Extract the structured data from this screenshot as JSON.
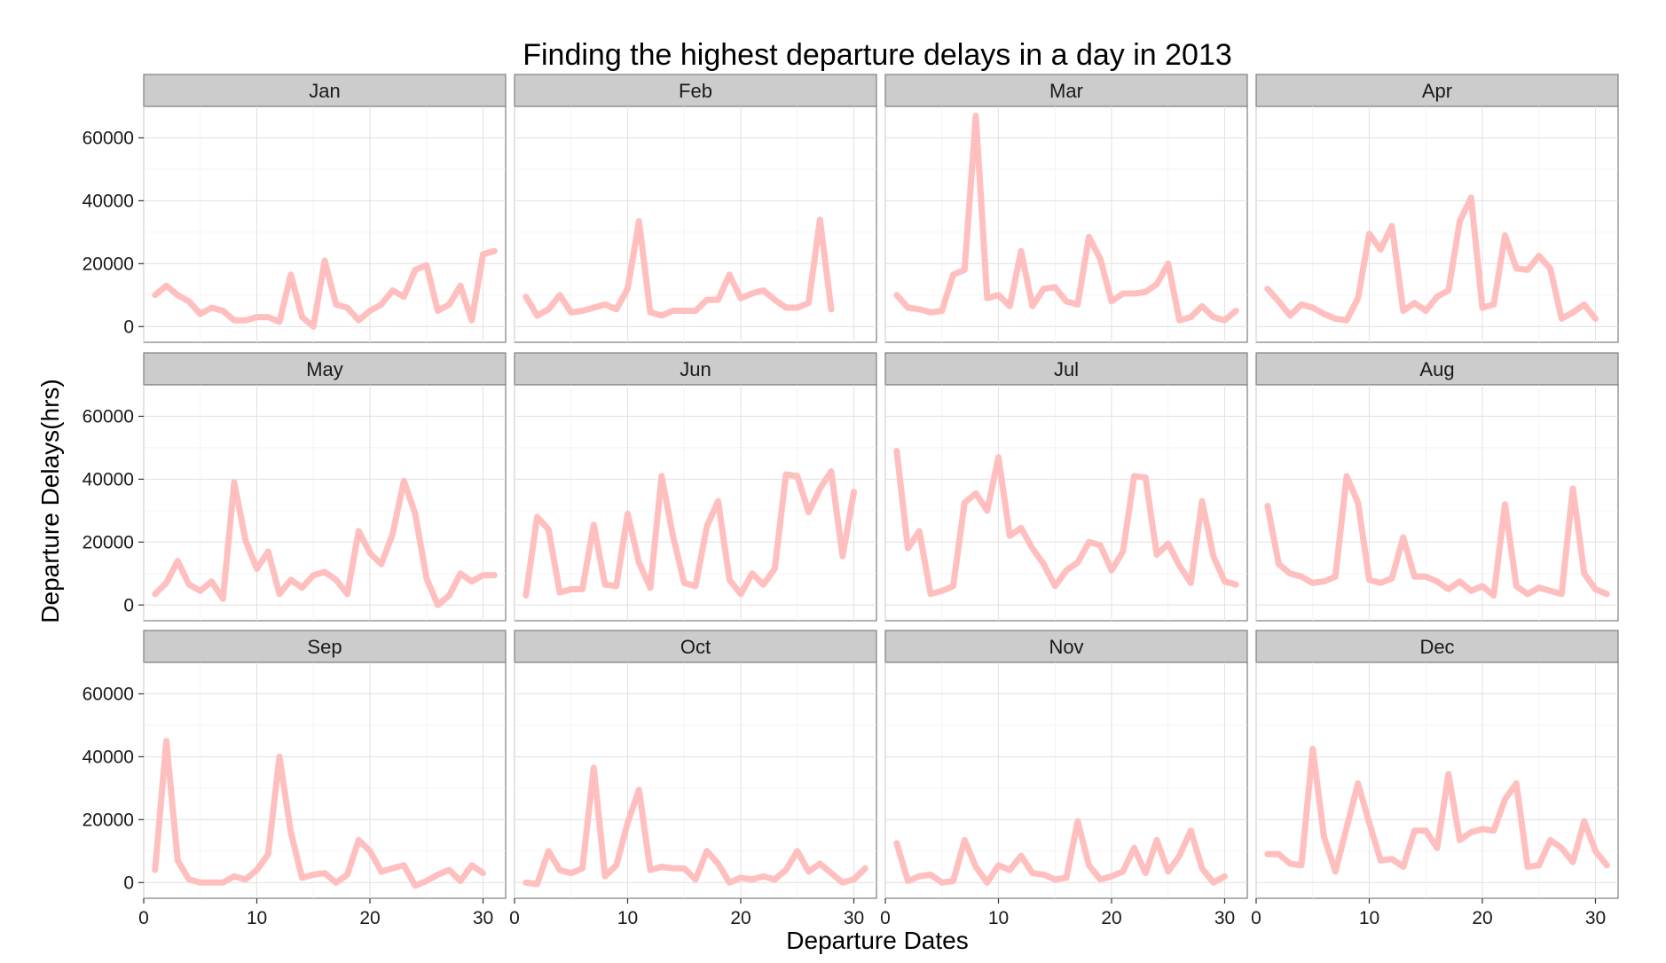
{
  "chart_data": {
    "type": "line",
    "title": "Finding the highest departure delays in a day in 2013",
    "xlabel": "Departure Dates",
    "ylabel": "Departure Delays(hrs)",
    "xlim": [
      0,
      32
    ],
    "ylim": [
      -5000,
      70000
    ],
    "x_ticks": [
      0,
      10,
      20,
      30
    ],
    "y_ticks": [
      0,
      20000,
      40000,
      60000
    ],
    "grid": true,
    "line_color": "#ffbfbf",
    "facet_layout": {
      "cols": 4,
      "rows": 3
    },
    "facets": [
      {
        "name": "Jan",
        "x": [
          1,
          2,
          3,
          4,
          5,
          6,
          7,
          8,
          9,
          10,
          11,
          12,
          13,
          14,
          15,
          16,
          17,
          18,
          19,
          20,
          21,
          22,
          23,
          24,
          25,
          26,
          27,
          28,
          29,
          30,
          31
        ],
        "values": [
          10000,
          13000,
          10000,
          8000,
          4000,
          6000,
          5000,
          2000,
          2000,
          3000,
          3000,
          1500,
          16500,
          3000,
          0,
          21000,
          7000,
          6000,
          2000,
          5000,
          7000,
          11500,
          9500,
          18000,
          19500,
          5000,
          7000,
          13000,
          2000,
          23000,
          24000
        ]
      },
      {
        "name": "Feb",
        "x": [
          1,
          2,
          3,
          4,
          5,
          6,
          7,
          8,
          9,
          10,
          11,
          12,
          13,
          14,
          15,
          16,
          17,
          18,
          19,
          20,
          21,
          22,
          23,
          24,
          25,
          26,
          27,
          28
        ],
        "values": [
          9500,
          3500,
          5500,
          10000,
          4500,
          5000,
          6000,
          7000,
          5500,
          12000,
          33500,
          4500,
          3500,
          5000,
          5000,
          5000,
          8500,
          8500,
          16500,
          9000,
          10500,
          11500,
          8500,
          6000,
          6000,
          7500,
          34000,
          5500
        ]
      },
      {
        "name": "Mar",
        "x": [
          1,
          2,
          3,
          4,
          5,
          6,
          7,
          8,
          9,
          10,
          11,
          12,
          13,
          14,
          15,
          16,
          17,
          18,
          19,
          20,
          21,
          22,
          23,
          24,
          25,
          26,
          27,
          28,
          29,
          30,
          31
        ],
        "values": [
          10000,
          6000,
          5500,
          4500,
          5000,
          16500,
          18000,
          67000,
          9000,
          10000,
          6500,
          24000,
          6500,
          12000,
          12500,
          8000,
          7000,
          28500,
          21500,
          8000,
          10500,
          10500,
          11000,
          13500,
          20000,
          2000,
          3000,
          6500,
          3000,
          2000,
          5000
        ]
      },
      {
        "name": "Apr",
        "x": [
          1,
          2,
          3,
          4,
          5,
          6,
          7,
          8,
          9,
          10,
          11,
          12,
          13,
          14,
          15,
          16,
          17,
          18,
          19,
          20,
          21,
          22,
          23,
          24,
          25,
          26,
          27,
          28,
          29,
          30
        ],
        "values": [
          12000,
          8000,
          3500,
          7000,
          6000,
          4000,
          2500,
          2000,
          9000,
          29500,
          24500,
          32000,
          5000,
          7500,
          5000,
          9500,
          11500,
          33500,
          41000,
          6000,
          7000,
          29000,
          18500,
          18000,
          22500,
          18500,
          2500,
          4500,
          7000,
          2500
        ]
      },
      {
        "name": "May",
        "x": [
          1,
          2,
          3,
          4,
          5,
          6,
          7,
          8,
          9,
          10,
          11,
          12,
          13,
          14,
          15,
          16,
          17,
          18,
          19,
          20,
          21,
          22,
          23,
          24,
          25,
          26,
          27,
          28,
          29,
          30,
          31
        ],
        "values": [
          3500,
          7000,
          14000,
          6500,
          4500,
          7500,
          2000,
          39000,
          20500,
          11500,
          17000,
          3500,
          8000,
          5500,
          9500,
          10500,
          8000,
          3500,
          23500,
          16500,
          13000,
          22500,
          39500,
          29000,
          8500,
          0,
          3000,
          10000,
          7500,
          9500,
          9500
        ]
      },
      {
        "name": "Jun",
        "x": [
          1,
          2,
          3,
          4,
          5,
          6,
          7,
          8,
          9,
          10,
          11,
          12,
          13,
          14,
          15,
          16,
          17,
          18,
          19,
          20,
          21,
          22,
          23,
          24,
          25,
          26,
          27,
          28,
          29,
          30
        ],
        "values": [
          3000,
          28000,
          24000,
          4000,
          5000,
          5000,
          25500,
          6500,
          6000,
          29000,
          13500,
          5500,
          41000,
          22000,
          7000,
          6000,
          25000,
          33000,
          8000,
          3500,
          10000,
          6500,
          11500,
          41500,
          41000,
          29500,
          37000,
          42500,
          15500,
          36000
        ]
      },
      {
        "name": "Jul",
        "x": [
          1,
          2,
          3,
          4,
          5,
          6,
          7,
          8,
          9,
          10,
          11,
          12,
          13,
          14,
          15,
          16,
          17,
          18,
          19,
          20,
          21,
          22,
          23,
          24,
          25,
          26,
          27,
          28,
          29,
          30,
          31
        ],
        "values": [
          49000,
          18000,
          23500,
          3500,
          4500,
          6000,
          32500,
          35500,
          30000,
          47000,
          22000,
          24500,
          18000,
          13000,
          6000,
          11000,
          13500,
          20000,
          19000,
          11000,
          17000,
          41000,
          40500,
          16000,
          19500,
          12500,
          7000,
          33000,
          15500,
          7500,
          6500
        ]
      },
      {
        "name": "Aug",
        "x": [
          1,
          2,
          3,
          4,
          5,
          6,
          7,
          8,
          9,
          10,
          11,
          12,
          13,
          14,
          15,
          16,
          17,
          18,
          19,
          20,
          21,
          22,
          23,
          24,
          25,
          26,
          27,
          28,
          29,
          30,
          31
        ],
        "values": [
          31500,
          13000,
          10000,
          9000,
          7000,
          7500,
          9000,
          41000,
          32500,
          8000,
          7000,
          8500,
          21500,
          9000,
          9000,
          7500,
          5000,
          7500,
          4500,
          6000,
          3000,
          32000,
          6000,
          3500,
          5500,
          4500,
          3500,
          37000,
          10000,
          5000,
          3500
        ]
      },
      {
        "name": "Sep",
        "x": [
          1,
          2,
          3,
          4,
          5,
          6,
          7,
          8,
          9,
          10,
          11,
          12,
          13,
          14,
          15,
          16,
          17,
          18,
          19,
          20,
          21,
          22,
          23,
          24,
          25,
          26,
          27,
          28,
          29,
          30
        ],
        "values": [
          4000,
          45000,
          7000,
          1000,
          0,
          0,
          0,
          2000,
          1000,
          4000,
          9000,
          40000,
          16000,
          1500,
          2500,
          3000,
          0,
          2500,
          13500,
          10000,
          3500,
          4500,
          5500,
          -1000,
          500,
          2500,
          4000,
          500,
          5500,
          3000
        ]
      },
      {
        "name": "Oct",
        "x": [
          1,
          2,
          3,
          4,
          5,
          6,
          7,
          8,
          9,
          10,
          11,
          12,
          13,
          14,
          15,
          16,
          17,
          18,
          19,
          20,
          21,
          22,
          23,
          24,
          25,
          26,
          27,
          28,
          29,
          30,
          31
        ],
        "values": [
          0,
          -500,
          10000,
          4000,
          3000,
          4500,
          36500,
          2000,
          5500,
          19000,
          29500,
          4000,
          5000,
          4500,
          4500,
          1000,
          10000,
          6000,
          0,
          1500,
          1000,
          2000,
          1000,
          4000,
          10000,
          3500,
          6000,
          3000,
          0,
          1000,
          4500
        ]
      },
      {
        "name": "Nov",
        "x": [
          1,
          2,
          3,
          4,
          5,
          6,
          7,
          8,
          9,
          10,
          11,
          12,
          13,
          14,
          15,
          16,
          17,
          18,
          19,
          20,
          21,
          22,
          23,
          24,
          25,
          26,
          27,
          28,
          29,
          30
        ],
        "values": [
          12500,
          500,
          2000,
          2500,
          0,
          500,
          13500,
          5000,
          0,
          5500,
          4000,
          8500,
          3000,
          2500,
          1000,
          1500,
          19500,
          5500,
          1000,
          2000,
          3500,
          11000,
          3000,
          13500,
          3500,
          8500,
          16500,
          4500,
          0,
          2000
        ]
      },
      {
        "name": "Dec",
        "x": [
          1,
          2,
          3,
          4,
          5,
          6,
          7,
          8,
          9,
          10,
          11,
          12,
          13,
          14,
          15,
          16,
          17,
          18,
          19,
          20,
          21,
          22,
          23,
          24,
          25,
          26,
          27,
          28,
          29,
          30,
          31
        ],
        "values": [
          9000,
          9000,
          6000,
          5500,
          42500,
          14500,
          3500,
          17500,
          31500,
          19000,
          7000,
          7500,
          5000,
          16500,
          16500,
          11000,
          34500,
          13500,
          16000,
          17000,
          16500,
          26500,
          31500,
          5000,
          5500,
          13500,
          11000,
          6500,
          19500,
          10000,
          5500
        ]
      }
    ]
  }
}
